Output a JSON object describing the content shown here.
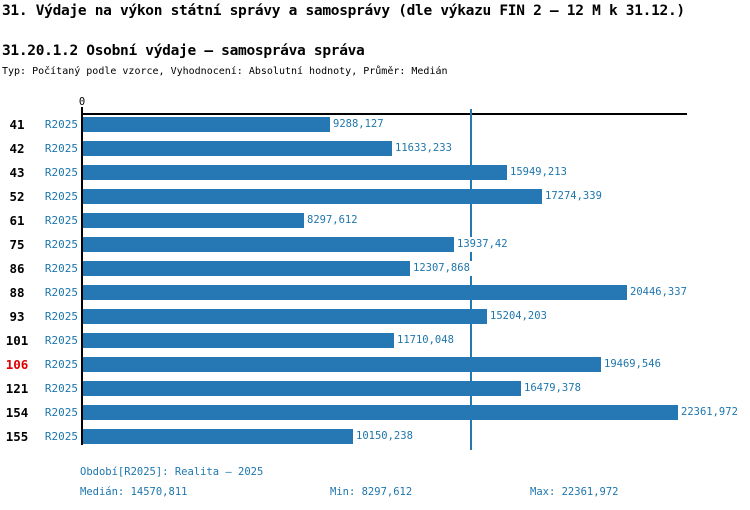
{
  "header": {
    "title": "31. Výdaje na výkon státní správy a samosprávy (dle výkazu FIN 2 – 12 M k 31.12.)",
    "subtitle": "31.20.1.2 Osobní výdaje – samospráva správa",
    "meta": "Typ: Počítaný podle vzorce, Vyhodnocení: Absolutní hodnoty, Průměr: Medián"
  },
  "chart_data": {
    "type": "bar",
    "orientation": "horizontal",
    "title": "31.20.1.2 Osobní výdaje – samospráva správa",
    "series_label": "R2025",
    "categories": [
      "41",
      "42",
      "43",
      "52",
      "61",
      "75",
      "86",
      "88",
      "93",
      "101",
      "106",
      "121",
      "154",
      "155"
    ],
    "values": [
      9288.127,
      11633.233,
      15949.213,
      17274.339,
      8297.612,
      13937.42,
      12307.868,
      20446.337,
      15204.203,
      11710.048,
      19469.546,
      16479.378,
      22361.972,
      10150.238
    ],
    "value_labels": [
      "9288,127",
      "11633,233",
      "15949,213",
      "17274,339",
      "8297,612",
      "13937,42",
      "12307,868",
      "20446,337",
      "15204,203",
      "11710,048",
      "19469,546",
      "16479,378",
      "22361,972",
      "10150,238"
    ],
    "highlighted_category": "106",
    "median": 14570.811,
    "min": 8297.612,
    "max": 22361.972,
    "xlim": [
      0,
      22710
    ],
    "zero_tick_label": "0",
    "grid": false,
    "legend_position": "none",
    "bar_color": "#2578b4",
    "highlight_color": "#dd0000",
    "median_line_color": "#2a77ad"
  },
  "footer": {
    "period": "Období[R2025]: Realita – 2025",
    "median": "Medián: 14570,811",
    "min": "Min: 8297,612",
    "max": "Max: 22361,972"
  }
}
